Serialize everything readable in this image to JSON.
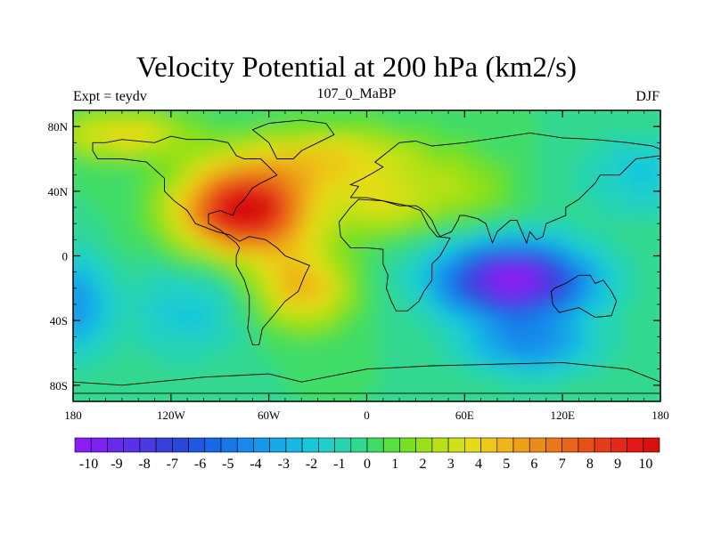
{
  "chart_data": {
    "type": "contour-map",
    "title": "Velocity Potential at 200 hPa (km2/s)",
    "left_label": "Expt = teydv",
    "center_label": "107_0_MaBP",
    "right_label": "DJF",
    "x_ticks": [
      "180",
      "120W",
      "60W",
      "0",
      "60E",
      "120E",
      "180"
    ],
    "x_values": [
      -180,
      -120,
      -60,
      0,
      60,
      120,
      180
    ],
    "y_ticks": [
      "80N",
      "40N",
      "0",
      "40S",
      "80S"
    ],
    "y_values": [
      80,
      40,
      0,
      -40,
      -80
    ],
    "xlim": [
      -180,
      180
    ],
    "ylim": [
      -90,
      90
    ],
    "colorbar": {
      "min": -10.5,
      "max": 10.5,
      "step": 0.5,
      "labels": [
        "-10",
        "-9",
        "-8",
        "-7",
        "-6",
        "-5",
        "-4",
        "-3",
        "-2",
        "-1",
        "0",
        "1",
        "2",
        "3",
        "4",
        "5",
        "6",
        "7",
        "8",
        "9",
        "10"
      ],
      "label_values": [
        -10,
        -9,
        -8,
        -7,
        -6,
        -5,
        -4,
        -3,
        -2,
        -1,
        0,
        1,
        2,
        3,
        4,
        5,
        6,
        7,
        8,
        9,
        10
      ]
    },
    "features": [
      {
        "name": "positive-maximum",
        "lon": -75,
        "lat": 28,
        "value": 10
      },
      {
        "name": "negative-minimum",
        "lon": 90,
        "lat": -15,
        "value": -10
      }
    ]
  },
  "colors": {
    "palette": [
      "#8b1cf5",
      "#7a22f2",
      "#6a2aee",
      "#5a30e8",
      "#4a38e0",
      "#3a40da",
      "#2a48d8",
      "#2058e0",
      "#1868e6",
      "#1878e8",
      "#1888ea",
      "#1898ea",
      "#18a8e8",
      "#18b8e2",
      "#18c8da",
      "#20d0c8",
      "#28d4b0",
      "#30d890",
      "#40dc68",
      "#58e040",
      "#78e020",
      "#98e018",
      "#b8e018",
      "#d0e018",
      "#e4dc18",
      "#ecc818",
      "#eeb418",
      "#eea018",
      "#ec8c18",
      "#ea7818",
      "#e86418",
      "#e65018",
      "#e43c18",
      "#e22818",
      "#e01818",
      "#d81010"
    ]
  }
}
